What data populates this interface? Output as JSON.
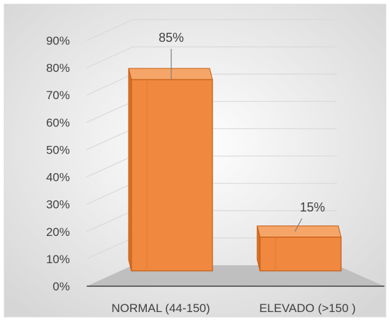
{
  "chart_data": {
    "type": "bar",
    "categories": [
      "NORMAL (44-150)",
      "ELEVADO (>150  )"
    ],
    "values": [
      85,
      15
    ],
    "data_labels": [
      "85%",
      "15%"
    ],
    "ylim": [
      0,
      90
    ],
    "yticks": [
      0,
      10,
      20,
      30,
      40,
      50,
      60,
      70,
      80,
      90
    ],
    "ytick_labels": [
      "0%",
      "10%",
      "20%",
      "30%",
      "40%",
      "50%",
      "60%",
      "70%",
      "80%",
      "90%"
    ],
    "grid": true,
    "legend": "none",
    "three_d": true,
    "colors": {
      "bar_front": "#f0893f",
      "bar_top": "#f5a567",
      "bar_side": "#d8712a",
      "bar_edge": "#c55a11",
      "floor": "#bfbfbf",
      "grid": "#d9d9d9",
      "text": "#404040"
    }
  }
}
